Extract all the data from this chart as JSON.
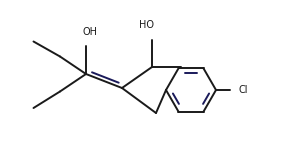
{
  "bg_color": "#ffffff",
  "line_color": "#1a1a1a",
  "double_bond_color": "#1a1a5a",
  "text_color": "#1a1a1a",
  "line_width": 1.4,
  "font_size": 7.0,
  "figsize": [
    2.94,
    1.5
  ],
  "dpi": 100,
  "xlim": [
    0,
    5.88
  ],
  "ylim": [
    0,
    3.0
  ]
}
